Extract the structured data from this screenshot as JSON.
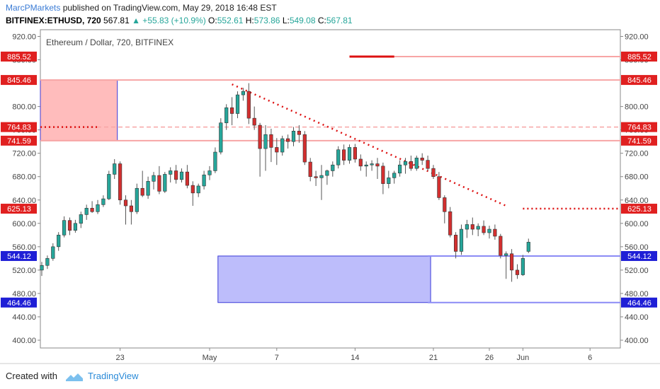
{
  "header": {
    "author": "MarcPMarkets",
    "published": "published on TradingView.com, May 29, 2018 16:48 EST",
    "symbol": "BITFINEX:ETHUSD, 720",
    "price": "567.81",
    "change": "▲ +55.83 (+10.9%)",
    "open_label": "O:",
    "open": "552.61",
    "high_label": "H:",
    "high": "573.86",
    "low_label": "L:",
    "low": "549.08",
    "close_label": "C:",
    "close": "567.81"
  },
  "footer": {
    "created_with": "Created with",
    "brand": "TradingView"
  },
  "colors": {
    "up": "#26a69a",
    "down": "#d32f2f",
    "resistance": "#f7a5a5",
    "support": "#8b8bf5",
    "tag_red": "#e02020",
    "tag_blue": "#1f1fd6"
  },
  "chart_data": {
    "type": "candlestick",
    "title": "Ethereum / Dollar, 720, BITFINEX",
    "y_ticks": [
      "920.00",
      "880.00",
      "800.00",
      "760.00",
      "720.00",
      "680.00",
      "640.00",
      "600.00",
      "560.00",
      "520.00",
      "480.00",
      "440.00",
      "400.00"
    ],
    "y_tick_values": [
      920,
      880,
      800,
      760,
      720,
      680,
      640,
      600,
      560,
      520,
      480,
      440,
      400
    ],
    "ylim": [
      380,
      930
    ],
    "x_ticks": [
      {
        "label": "23",
        "i": 14
      },
      {
        "label": "May",
        "i": 30
      },
      {
        "label": "7",
        "i": 42
      },
      {
        "label": "14",
        "i": 56
      },
      {
        "label": "21",
        "i": 70
      },
      {
        "label": "26",
        "i": 80
      },
      {
        "label": "Jun",
        "i": 86
      },
      {
        "label": "6",
        "i": 98
      }
    ],
    "price_tags": [
      {
        "label": "885.52",
        "value": 885.52,
        "color": "red"
      },
      {
        "label": "845.46",
        "value": 845.46,
        "color": "red"
      },
      {
        "label": "764.83",
        "value": 764.83,
        "color": "red"
      },
      {
        "label": "741.59",
        "value": 741.59,
        "color": "red"
      },
      {
        "label": "625.13",
        "value": 625.13,
        "color": "red"
      },
      {
        "label": "544.12",
        "value": 544.12,
        "color": "blue"
      },
      {
        "label": "464.46",
        "value": 464.46,
        "color": "blue"
      }
    ],
    "zones": [
      {
        "name": "supply-zone",
        "i0": 0,
        "i1": 13,
        "top": 845.46,
        "bottom": 741.59
      },
      {
        "name": "demand-zone",
        "i0": 32,
        "i1": 69,
        "top": 544.12,
        "bottom": 464.46
      }
    ],
    "trendline": {
      "i0": 34,
      "v0": 838,
      "i1": 83,
      "v1": 630
    },
    "candles": [
      {
        "o": 520,
        "h": 534,
        "l": 510,
        "c": 528
      },
      {
        "o": 528,
        "h": 545,
        "l": 522,
        "c": 540
      },
      {
        "o": 540,
        "h": 566,
        "l": 536,
        "c": 560
      },
      {
        "o": 560,
        "h": 585,
        "l": 553,
        "c": 580
      },
      {
        "o": 580,
        "h": 612,
        "l": 576,
        "c": 605
      },
      {
        "o": 605,
        "h": 610,
        "l": 580,
        "c": 588
      },
      {
        "o": 588,
        "h": 606,
        "l": 584,
        "c": 600
      },
      {
        "o": 600,
        "h": 620,
        "l": 592,
        "c": 615
      },
      {
        "o": 615,
        "h": 632,
        "l": 606,
        "c": 626
      },
      {
        "o": 626,
        "h": 638,
        "l": 618,
        "c": 620
      },
      {
        "o": 620,
        "h": 640,
        "l": 616,
        "c": 632
      },
      {
        "o": 632,
        "h": 648,
        "l": 628,
        "c": 642
      },
      {
        "o": 642,
        "h": 690,
        "l": 640,
        "c": 684
      },
      {
        "o": 684,
        "h": 710,
        "l": 676,
        "c": 702
      },
      {
        "o": 702,
        "h": 706,
        "l": 632,
        "c": 640
      },
      {
        "o": 640,
        "h": 648,
        "l": 598,
        "c": 630
      },
      {
        "o": 630,
        "h": 640,
        "l": 598,
        "c": 620
      },
      {
        "o": 620,
        "h": 668,
        "l": 616,
        "c": 660
      },
      {
        "o": 660,
        "h": 690,
        "l": 645,
        "c": 648
      },
      {
        "o": 648,
        "h": 680,
        "l": 642,
        "c": 672
      },
      {
        "o": 672,
        "h": 688,
        "l": 658,
        "c": 682
      },
      {
        "o": 682,
        "h": 698,
        "l": 650,
        "c": 655
      },
      {
        "o": 655,
        "h": 688,
        "l": 652,
        "c": 684
      },
      {
        "o": 684,
        "h": 696,
        "l": 670,
        "c": 690
      },
      {
        "o": 690,
        "h": 700,
        "l": 668,
        "c": 675
      },
      {
        "o": 675,
        "h": 694,
        "l": 670,
        "c": 688
      },
      {
        "o": 688,
        "h": 700,
        "l": 660,
        "c": 665
      },
      {
        "o": 665,
        "h": 672,
        "l": 630,
        "c": 652
      },
      {
        "o": 652,
        "h": 668,
        "l": 645,
        "c": 664
      },
      {
        "o": 664,
        "h": 690,
        "l": 658,
        "c": 683
      },
      {
        "o": 683,
        "h": 698,
        "l": 674,
        "c": 690
      },
      {
        "o": 690,
        "h": 730,
        "l": 686,
        "c": 722
      },
      {
        "o": 722,
        "h": 780,
        "l": 718,
        "c": 772
      },
      {
        "o": 772,
        "h": 804,
        "l": 760,
        "c": 798
      },
      {
        "o": 798,
        "h": 816,
        "l": 768,
        "c": 788
      },
      {
        "o": 788,
        "h": 826,
        "l": 780,
        "c": 820
      },
      {
        "o": 820,
        "h": 832,
        "l": 810,
        "c": 826
      },
      {
        "o": 826,
        "h": 840,
        "l": 770,
        "c": 780
      },
      {
        "o": 780,
        "h": 800,
        "l": 760,
        "c": 768
      },
      {
        "o": 768,
        "h": 772,
        "l": 680,
        "c": 728
      },
      {
        "o": 728,
        "h": 768,
        "l": 690,
        "c": 752
      },
      {
        "o": 752,
        "h": 762,
        "l": 705,
        "c": 730
      },
      {
        "o": 730,
        "h": 746,
        "l": 700,
        "c": 722
      },
      {
        "o": 722,
        "h": 750,
        "l": 716,
        "c": 745
      },
      {
        "o": 745,
        "h": 752,
        "l": 728,
        "c": 740
      },
      {
        "o": 740,
        "h": 765,
        "l": 732,
        "c": 758
      },
      {
        "o": 758,
        "h": 768,
        "l": 738,
        "c": 752
      },
      {
        "o": 752,
        "h": 758,
        "l": 700,
        "c": 705
      },
      {
        "o": 705,
        "h": 712,
        "l": 672,
        "c": 680
      },
      {
        "o": 680,
        "h": 690,
        "l": 664,
        "c": 678
      },
      {
        "o": 678,
        "h": 700,
        "l": 640,
        "c": 682
      },
      {
        "o": 682,
        "h": 692,
        "l": 666,
        "c": 690
      },
      {
        "o": 690,
        "h": 706,
        "l": 680,
        "c": 700
      },
      {
        "o": 700,
        "h": 732,
        "l": 694,
        "c": 726
      },
      {
        "o": 726,
        "h": 735,
        "l": 700,
        "c": 708
      },
      {
        "o": 708,
        "h": 735,
        "l": 702,
        "c": 730
      },
      {
        "o": 730,
        "h": 736,
        "l": 704,
        "c": 710
      },
      {
        "o": 710,
        "h": 718,
        "l": 690,
        "c": 698
      },
      {
        "o": 698,
        "h": 706,
        "l": 680,
        "c": 700
      },
      {
        "o": 700,
        "h": 708,
        "l": 690,
        "c": 702
      },
      {
        "o": 702,
        "h": 712,
        "l": 676,
        "c": 698
      },
      {
        "o": 698,
        "h": 704,
        "l": 650,
        "c": 668
      },
      {
        "o": 668,
        "h": 690,
        "l": 660,
        "c": 678
      },
      {
        "o": 678,
        "h": 690,
        "l": 668,
        "c": 686
      },
      {
        "o": 686,
        "h": 708,
        "l": 680,
        "c": 700
      },
      {
        "o": 700,
        "h": 712,
        "l": 685,
        "c": 706
      },
      {
        "o": 706,
        "h": 716,
        "l": 690,
        "c": 694
      },
      {
        "o": 694,
        "h": 716,
        "l": 690,
        "c": 712
      },
      {
        "o": 712,
        "h": 720,
        "l": 700,
        "c": 708
      },
      {
        "o": 708,
        "h": 716,
        "l": 690,
        "c": 694
      },
      {
        "o": 694,
        "h": 700,
        "l": 676,
        "c": 680
      },
      {
        "o": 680,
        "h": 688,
        "l": 640,
        "c": 644
      },
      {
        "o": 644,
        "h": 648,
        "l": 600,
        "c": 620
      },
      {
        "o": 620,
        "h": 628,
        "l": 576,
        "c": 580
      },
      {
        "o": 580,
        "h": 585,
        "l": 540,
        "c": 552
      },
      {
        "o": 552,
        "h": 598,
        "l": 546,
        "c": 590
      },
      {
        "o": 590,
        "h": 606,
        "l": 575,
        "c": 598
      },
      {
        "o": 598,
        "h": 610,
        "l": 580,
        "c": 590
      },
      {
        "o": 590,
        "h": 600,
        "l": 578,
        "c": 595
      },
      {
        "o": 595,
        "h": 605,
        "l": 580,
        "c": 584
      },
      {
        "o": 584,
        "h": 596,
        "l": 574,
        "c": 590
      },
      {
        "o": 590,
        "h": 598,
        "l": 572,
        "c": 578
      },
      {
        "o": 578,
        "h": 582,
        "l": 540,
        "c": 545
      },
      {
        "o": 545,
        "h": 552,
        "l": 505,
        "c": 548
      },
      {
        "o": 548,
        "h": 556,
        "l": 500,
        "c": 520
      },
      {
        "o": 520,
        "h": 530,
        "l": 505,
        "c": 512
      },
      {
        "o": 512,
        "h": 546,
        "l": 510,
        "c": 540
      },
      {
        "o": 552,
        "h": 573.86,
        "l": 549.08,
        "c": 567.81
      }
    ]
  }
}
